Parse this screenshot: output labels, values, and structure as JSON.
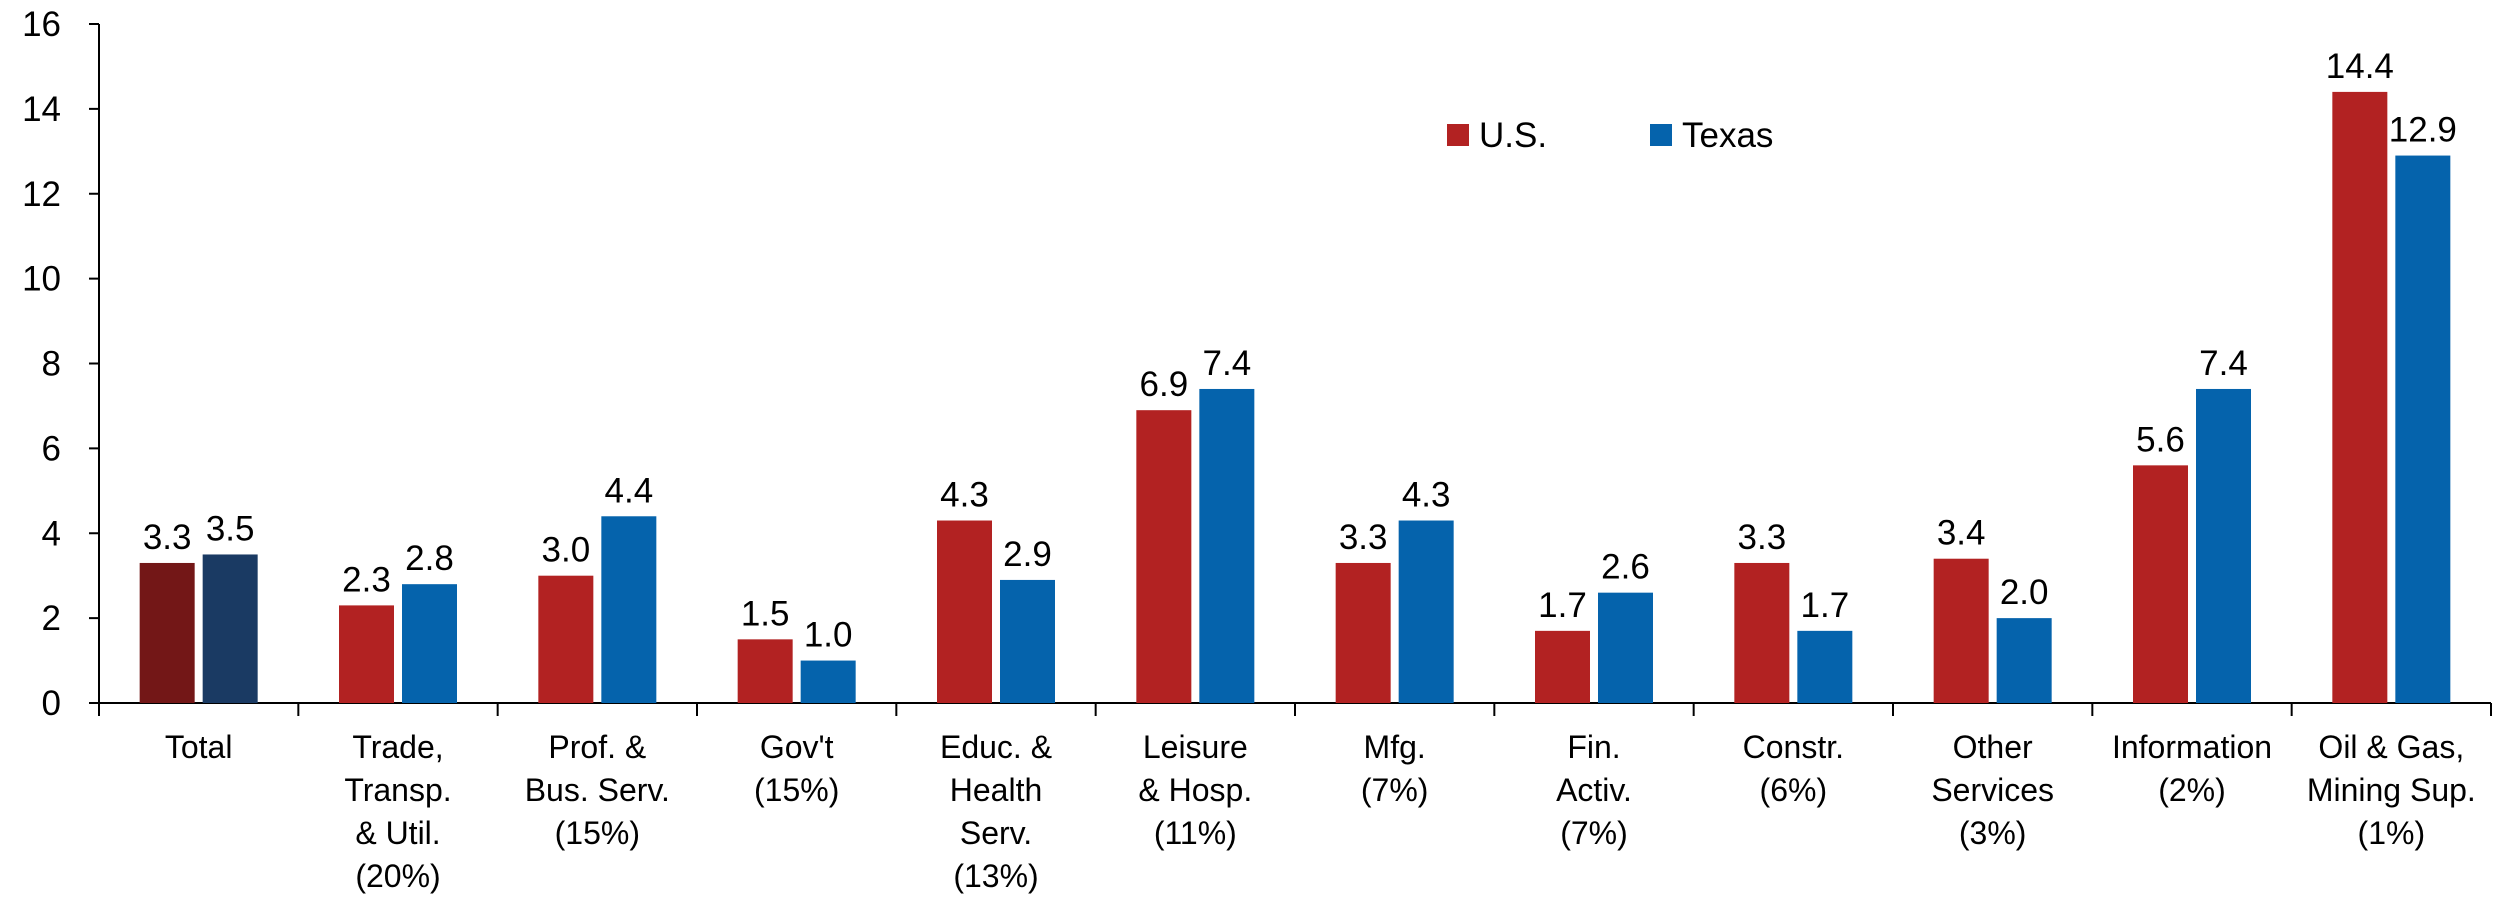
{
  "chart_data": {
    "type": "bar",
    "categories": [
      "Total",
      "Trade,\nTransp.\n& Util.\n(20%)",
      "Prof. &\nBus. Serv.\n(15%)",
      "Gov't\n(15%)",
      "Educ. &\nHealth\nServ.\n(13%)",
      "Leisure\n& Hosp.\n(11%)",
      "Mfg.\n(7%)",
      "Fin.\nActiv.\n(7%)",
      "Constr.\n(6%)",
      "Other\nServices\n(3%)",
      "Information\n(2%)",
      "Oil & Gas,\nMining Sup.\n(1%)"
    ],
    "series": [
      {
        "name": "U.S.",
        "color": "#b22222",
        "colors": [
          "#731717",
          "#b22222",
          "#b22222",
          "#b22222",
          "#b22222",
          "#b22222",
          "#b22222",
          "#b22222",
          "#b22222",
          "#b22222",
          "#b22222",
          "#b22222"
        ],
        "values": [
          3.3,
          2.3,
          3.0,
          1.5,
          4.3,
          6.9,
          3.3,
          1.7,
          3.3,
          3.4,
          5.6,
          14.4
        ],
        "value_labels": [
          "3.3",
          "2.3",
          "3.0",
          "1.5",
          "4.3",
          "6.9",
          "3.3",
          "1.7",
          "3.3",
          "3.4",
          "5.6",
          "14.4"
        ]
      },
      {
        "name": "Texas",
        "color": "#0563ac",
        "colors": [
          "#1a3a63",
          "#0563ac",
          "#0563ac",
          "#0563ac",
          "#0563ac",
          "#0563ac",
          "#0563ac",
          "#0563ac",
          "#0563ac",
          "#0563ac",
          "#0563ac",
          "#0563ac"
        ],
        "values": [
          3.5,
          2.8,
          4.4,
          1.0,
          2.9,
          7.4,
          4.3,
          2.6,
          1.7,
          2.0,
          7.4,
          12.9
        ],
        "value_labels": [
          "3.5",
          "2.8",
          "4.4",
          "1.0",
          "2.9",
          "7.4",
          "4.3",
          "2.6",
          "1.7",
          "2.0",
          "7.4",
          "12.9"
        ]
      }
    ],
    "ylim": [
      0,
      16
    ],
    "yticks": [
      0,
      2,
      4,
      6,
      8,
      10,
      12,
      14,
      16
    ],
    "grid": false,
    "legend": "top-right"
  }
}
